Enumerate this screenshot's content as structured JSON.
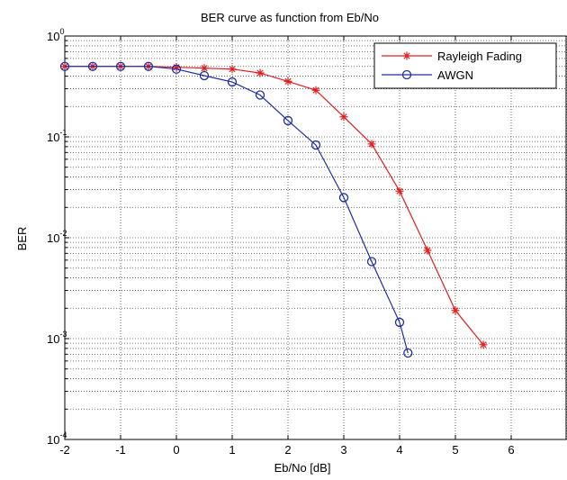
{
  "chart_data": {
    "type": "line",
    "title": "BER curve as function from Eb/No",
    "xlabel": "Eb/No [dB]",
    "ylabel": "BER",
    "xlim": [
      -2,
      7
    ],
    "ylim": [
      0.0001,
      1
    ],
    "yscale": "log",
    "x_ticks": [
      "-2",
      "-1",
      "0",
      "1",
      "2",
      "3",
      "4",
      "5",
      "6"
    ],
    "y_ticks": [
      {
        "base": "10",
        "exp": "0",
        "value": 1
      },
      {
        "base": "10",
        "exp": "-1",
        "value": 0.1
      },
      {
        "base": "10",
        "exp": "-2",
        "value": 0.01
      },
      {
        "base": "10",
        "exp": "-3",
        "value": 0.001
      },
      {
        "base": "10",
        "exp": "-4",
        "value": 0.0001
      }
    ],
    "grid": true,
    "legend": "top-right",
    "series": [
      {
        "name": "Rayleigh Fading",
        "color": "#e02020",
        "marker": "asterisk",
        "x": [
          -2,
          -1.5,
          -1,
          -0.5,
          0,
          0.5,
          1,
          1.5,
          2,
          2.5,
          3,
          3.5,
          4,
          4.5,
          5,
          5.5
        ],
        "y": [
          0.5,
          0.5,
          0.5,
          0.5,
          0.49,
          0.48,
          0.47,
          0.43,
          0.355,
          0.29,
          0.158,
          0.085,
          0.029,
          0.0075,
          0.0019,
          0.00087
        ]
      },
      {
        "name": "AWGN",
        "color": "#1f2f9f",
        "marker": "circle",
        "x": [
          -2,
          -1.5,
          -1,
          -0.5,
          0,
          0.5,
          1,
          1.5,
          2,
          2.5,
          3,
          3.5,
          4,
          4.15
        ],
        "y": [
          0.5,
          0.5,
          0.5,
          0.5,
          0.47,
          0.405,
          0.35,
          0.26,
          0.145,
          0.083,
          0.025,
          0.0058,
          0.00145,
          0.00072
        ]
      }
    ]
  }
}
